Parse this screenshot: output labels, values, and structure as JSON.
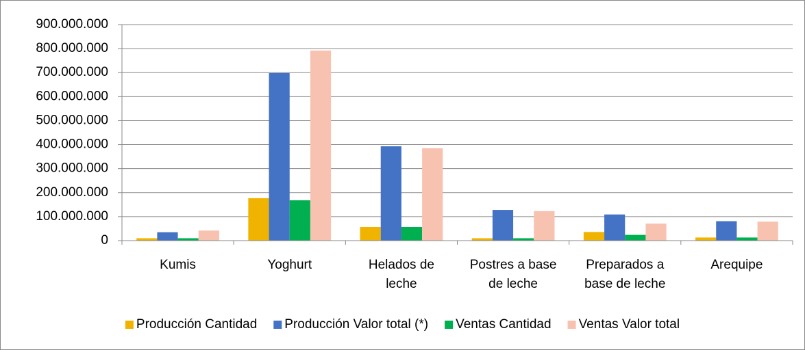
{
  "chart_data": {
    "type": "bar",
    "categories": [
      "Kumis",
      "Yoghurt",
      "Helados de leche",
      "Postres a base de leche",
      "Preparados a base de leche",
      "Arequipe"
    ],
    "series": [
      {
        "name": "Producción Cantidad",
        "color": "#f0b400",
        "values": [
          10000000,
          177000000,
          57000000,
          10000000,
          36000000,
          13000000
        ]
      },
      {
        "name": "Producción Valor total (*)",
        "color": "#4472c4",
        "values": [
          35000000,
          698000000,
          393000000,
          128000000,
          109000000,
          81000000
        ]
      },
      {
        "name": "Ventas Cantidad",
        "color": "#00b050",
        "values": [
          10000000,
          168000000,
          57000000,
          10000000,
          24000000,
          13000000
        ]
      },
      {
        "name": "Ventas Valor total",
        "color": "#f8c2b1",
        "values": [
          42000000,
          792000000,
          385000000,
          123000000,
          71000000,
          79000000
        ]
      }
    ],
    "ylim": [
      0,
      900000000
    ],
    "yticks": [
      0,
      {
        "value": 100000000,
        "label": "100.000.000"
      },
      {
        "value": 200000000,
        "label": "200.000.000"
      },
      {
        "value": 300000000,
        "label": "300.000.000"
      },
      {
        "value": 400000000,
        "label": "400.000.000"
      },
      {
        "value": 500000000,
        "label": "500.000.000"
      },
      {
        "value": 600000000,
        "label": "600.000.000"
      },
      {
        "value": 700000000,
        "label": "700.000.000"
      },
      {
        "value": 800000000,
        "label": "800.000.000"
      },
      {
        "value": 900000000,
        "label": "900.000.000"
      }
    ],
    "grid": true,
    "legend": "bottom"
  }
}
